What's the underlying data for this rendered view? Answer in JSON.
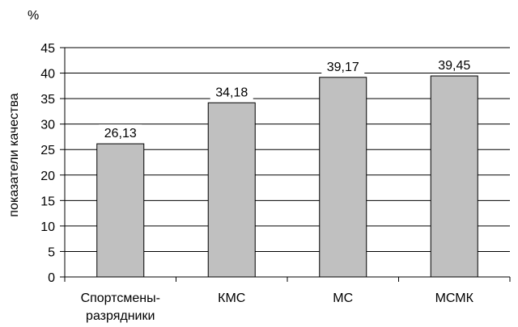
{
  "chart_data": {
    "type": "bar",
    "categories": [
      [
        "Спортсмены-",
        "разрядники"
      ],
      [
        "КМС"
      ],
      [
        "МС"
      ],
      [
        "МСМК"
      ]
    ],
    "values": [
      26.13,
      34.18,
      39.17,
      39.45
    ],
    "data_labels": [
      "26,13",
      "34,18",
      "39,17",
      "39,45"
    ],
    "title": "",
    "xlabel": "",
    "ylabel": "показатели качества",
    "unit": "%",
    "ylim": [
      0,
      45
    ],
    "yticks": [
      0,
      5,
      10,
      15,
      20,
      25,
      30,
      35,
      40,
      45
    ],
    "grid": true,
    "legend": "none"
  },
  "colors": {
    "bar_fill": "#c0c0c0",
    "bar_stroke": "#000000",
    "grid": "#000000",
    "label_background": "#ffffff"
  }
}
